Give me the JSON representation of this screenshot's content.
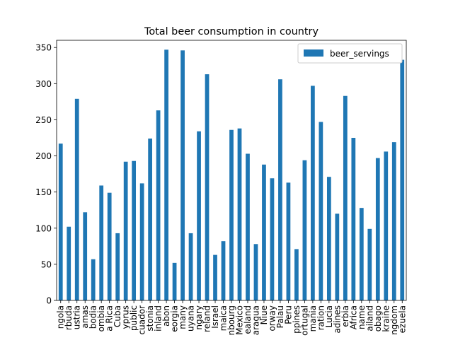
{
  "chart_data": {
    "type": "bar",
    "title": "Total beer consumption in country",
    "xlabel": "",
    "ylabel": "",
    "ylim": [
      0,
      360
    ],
    "yticks": [
      0,
      50,
      100,
      150,
      200,
      250,
      300,
      350
    ],
    "grid": false,
    "legend_position": "top-right",
    "bar_color": "#1f77b4",
    "series": [
      {
        "name": "beer_servings",
        "values": [
          217,
          102,
          279,
          122,
          57,
          159,
          149,
          93,
          192,
          193,
          162,
          224,
          263,
          347,
          52,
          346,
          93,
          234,
          313,
          63,
          82,
          236,
          238,
          203,
          78,
          188,
          169,
          306,
          163,
          71,
          194,
          297,
          247,
          171,
          120,
          283,
          225,
          128,
          99,
          197,
          206,
          219,
          333
        ]
      }
    ],
    "categories": [
      "ngola",
      "rbuda",
      "ustria",
      "amas",
      "bodia",
      "ombia",
      "a Rica",
      "Cuba",
      "yprus",
      "public",
      "cuador",
      "stonia",
      "inland",
      "abon",
      "eorgia",
      "many",
      "uyana",
      "ngary",
      "reland",
      "Israel",
      "maica",
      "nbourg",
      "Mexico",
      "ealand",
      "aragua",
      "Niue",
      "orway",
      "Palau",
      "Peru",
      "ppines",
      "ortugal",
      "mania",
      "ration",
      "Lucia",
      "adines",
      "erbia",
      "Africa",
      "name",
      "ailand",
      "obago",
      "kraine",
      "ngdom",
      "ezuela"
    ]
  }
}
